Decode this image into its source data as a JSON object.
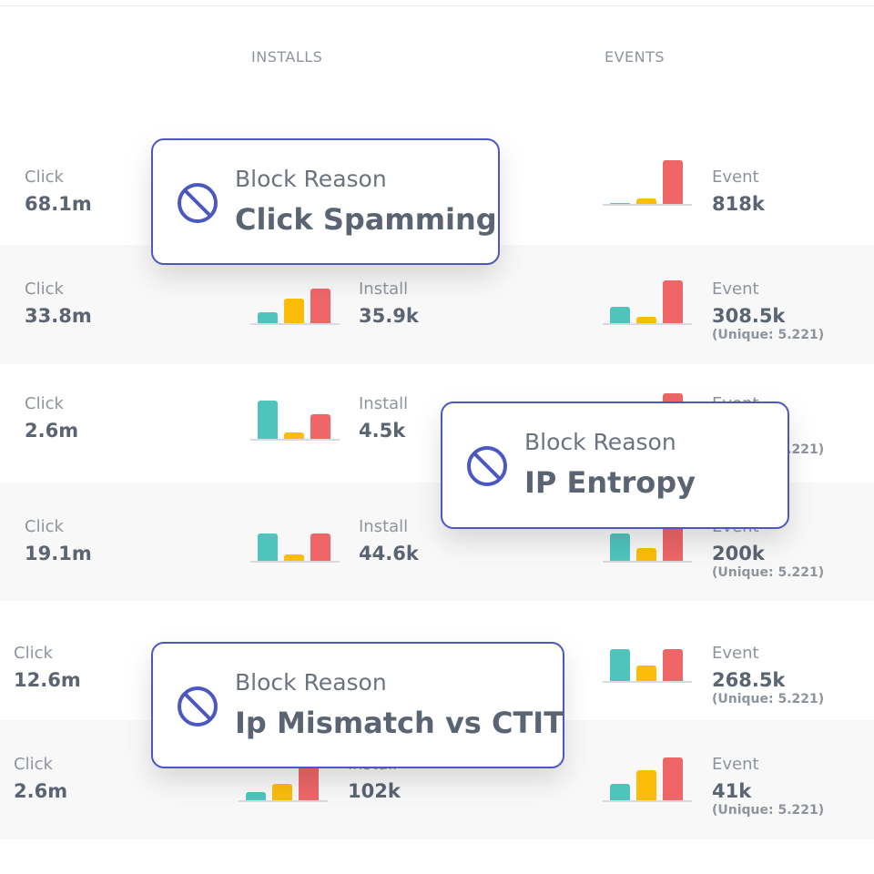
{
  "header": {
    "installs": "INSTALLS",
    "events": "EVENTS"
  },
  "colors": {
    "teal": "#4fc4be",
    "yellow": "#fbbd0a",
    "red": "#ee6668",
    "popup_border": "#4a58c0"
  },
  "rows": [
    {
      "click_label": "Click",
      "click_value": "68.1m",
      "install_label": "",
      "install_value": "",
      "install_bars": [],
      "event_label": "Event",
      "event_value": "818k",
      "event_unique": "",
      "event_bars": [
        2,
        12,
        96
      ]
    },
    {
      "click_label": "Click",
      "click_value": "33.8m",
      "install_label": "Install",
      "install_value": "35.9k",
      "install_bars": [
        24,
        54,
        76
      ],
      "event_label": "Event",
      "event_value": "308.5k",
      "event_unique": "(Unique: 5.221)",
      "event_bars": [
        36,
        14,
        94
      ]
    },
    {
      "click_label": "Click",
      "click_value": "2.6m",
      "install_label": "Install",
      "install_value": "4.5k",
      "install_bars": [
        84,
        14,
        54
      ],
      "event_label": "Event",
      "event_value": "",
      "event_unique": "(Unique: 5.221)",
      "event_bars": [
        0,
        0,
        100
      ]
    },
    {
      "click_label": "Click",
      "click_value": "19.1m",
      "install_label": "Install",
      "install_value": "44.6k",
      "install_bars": [
        60,
        14,
        60
      ],
      "event_label": "Event",
      "event_value": "200k",
      "event_unique": "(Unique: 5.221)",
      "event_bars": [
        60,
        28,
        96
      ]
    },
    {
      "click_label": "Click",
      "click_value": "12.6m",
      "install_label": "",
      "install_value": "",
      "install_bars": [],
      "event_label": "Event",
      "event_value": "268.5k",
      "event_unique": "(Unique: 5.221)",
      "event_bars": [
        70,
        34,
        70
      ]
    },
    {
      "click_label": "Click",
      "click_value": "2.6m",
      "install_label": "Install",
      "install_value": "102k",
      "install_bars": [
        18,
        36,
        96
      ],
      "event_label": "Event",
      "event_value": "41k",
      "event_unique": "(Unique: 5.221)",
      "event_bars": [
        36,
        66,
        94
      ]
    }
  ],
  "popups": [
    {
      "title": "Block Reason",
      "value": "Click Spamming",
      "icon": "block-icon"
    },
    {
      "title": "Block Reason",
      "value": "IP Entropy",
      "icon": "block-icon"
    },
    {
      "title": "Block Reason",
      "value": "Ip Mismatch vs CTIT",
      "icon": "block-icon"
    }
  ]
}
